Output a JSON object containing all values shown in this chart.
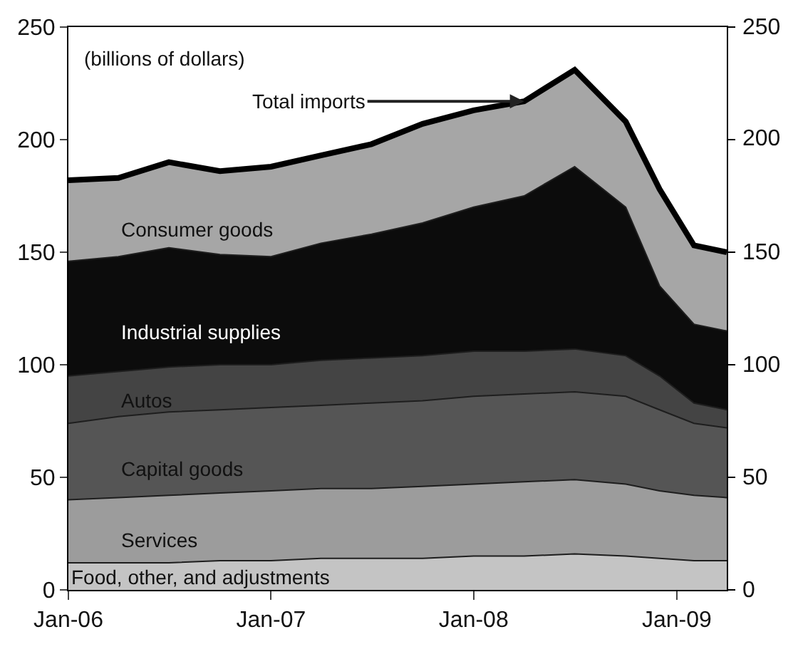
{
  "chart_data": {
    "type": "area",
    "stacked": true,
    "annotations": [
      "(billions of dollars)",
      {
        "text": "Total imports",
        "x": "2008-04",
        "y": 217
      }
    ],
    "x": [
      "2006-01",
      "2006-04",
      "2006-07",
      "2006-10",
      "2007-01",
      "2007-04",
      "2007-07",
      "2007-10",
      "2008-01",
      "2008-04",
      "2008-07",
      "2008-10",
      "2008-12",
      "2009-02",
      "2009-04"
    ],
    "xlim": [
      "2006-01",
      "2009-04"
    ],
    "xticks": [
      {
        "value": "2006-01",
        "label": "Jan-06"
      },
      {
        "value": "2007-01",
        "label": "Jan-07"
      },
      {
        "value": "2008-01",
        "label": "Jan-08"
      },
      {
        "value": "2009-01",
        "label": "Jan-09"
      }
    ],
    "ylim": [
      0,
      250
    ],
    "yticks": [
      0,
      50,
      100,
      150,
      200,
      250
    ],
    "y2lim": [
      0,
      250
    ],
    "y2ticks": [
      0,
      50,
      100,
      150,
      200,
      250
    ],
    "series": [
      {
        "name": "Food, other, and adjustments",
        "color": "#c4c4c4",
        "values": [
          12,
          12,
          12,
          13,
          13,
          14,
          14,
          14,
          15,
          15,
          16,
          15,
          14,
          13,
          13
        ]
      },
      {
        "name": "Services",
        "color": "#9c9c9c",
        "values": [
          28,
          29,
          30,
          30,
          31,
          31,
          31,
          32,
          32,
          33,
          33,
          32,
          30,
          29,
          28
        ]
      },
      {
        "name": "Capital goods",
        "color": "#555555",
        "values": [
          34,
          36,
          37,
          37,
          37,
          37,
          38,
          38,
          39,
          39,
          39,
          39,
          36,
          32,
          31
        ]
      },
      {
        "name": "Autos",
        "color": "#444444",
        "values": [
          21,
          20,
          20,
          20,
          19,
          20,
          20,
          20,
          20,
          19,
          19,
          18,
          15,
          9,
          8
        ]
      },
      {
        "name": "Industrial supplies",
        "color": "#0c0c0c",
        "values": [
          51,
          51,
          53,
          49,
          48,
          52,
          55,
          59,
          64,
          69,
          81,
          66,
          40,
          35,
          35
        ]
      },
      {
        "name": "Consumer goods",
        "color": "#a6a6a6",
        "values": [
          36,
          35,
          38,
          37,
          40,
          39,
          40,
          44,
          43,
          42,
          43,
          38,
          43,
          35,
          35
        ]
      }
    ]
  }
}
